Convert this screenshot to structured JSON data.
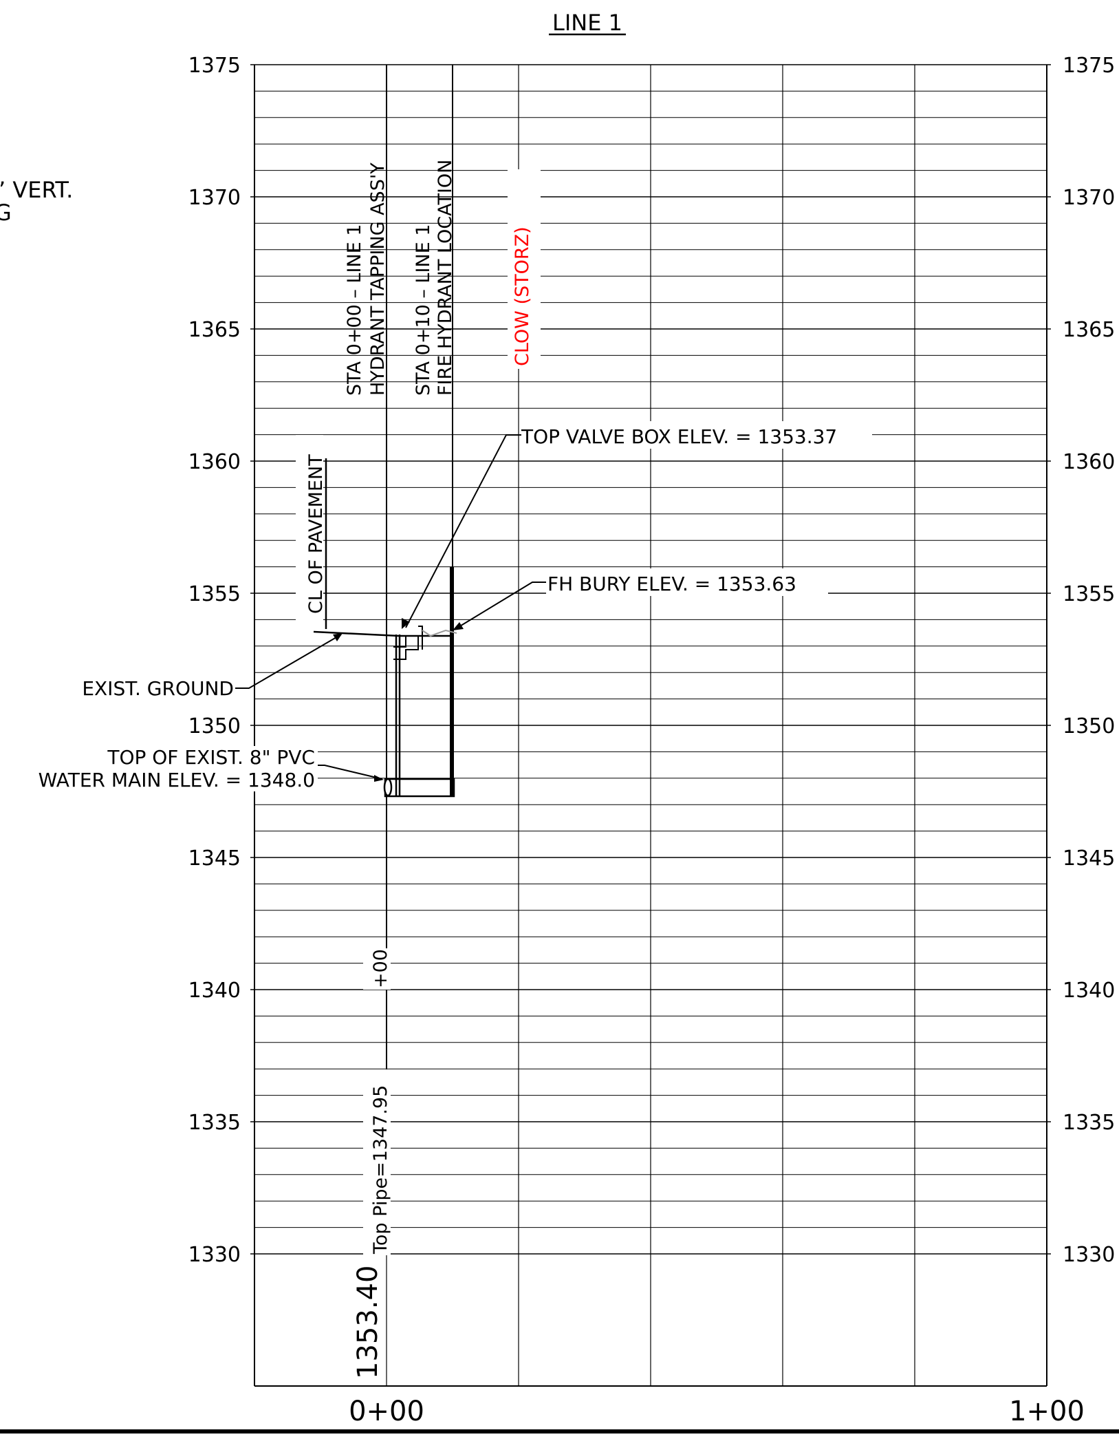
{
  "title": "LINE 1",
  "fragment_top_left": "’ VERT.",
  "fragment_left": "G",
  "elevation_labels": [
    "1375",
    "1370",
    "1365",
    "1360",
    "1355",
    "1350",
    "1345",
    "1340",
    "1335",
    "1330"
  ],
  "station_labels": [
    "0+00",
    "1+00"
  ],
  "vertical_labels": {
    "tap_line1": "STA 0+00 – LINE 1",
    "tap_line2": "HYDRANT TAPPING ASS'Y",
    "fh_line1": "STA 0+10 – LINE 1",
    "fh_line2": "FIRE HYDRANT LOCATION",
    "clow": "CLOW (STORZ)",
    "pavement": "CL OF PAVEMENT",
    "station_plus": "+00",
    "top_pipe": "Top Pipe=1347.95",
    "ground_elev": "1353.40"
  },
  "callouts": {
    "valve_box": "TOP VALVE BOX ELEV. = 1353.37",
    "fh_bury": "FH BURY ELEV. = 1353.63",
    "exist_ground": "EXIST. GROUND",
    "pvc_line1": "TOP OF EXIST. 8\" PVC",
    "pvc_line2": "WATER MAIN ELEV. = 1348.0"
  },
  "colors": {
    "line": "#000000",
    "accent": "#ff0000",
    "grid": "#000000"
  }
}
